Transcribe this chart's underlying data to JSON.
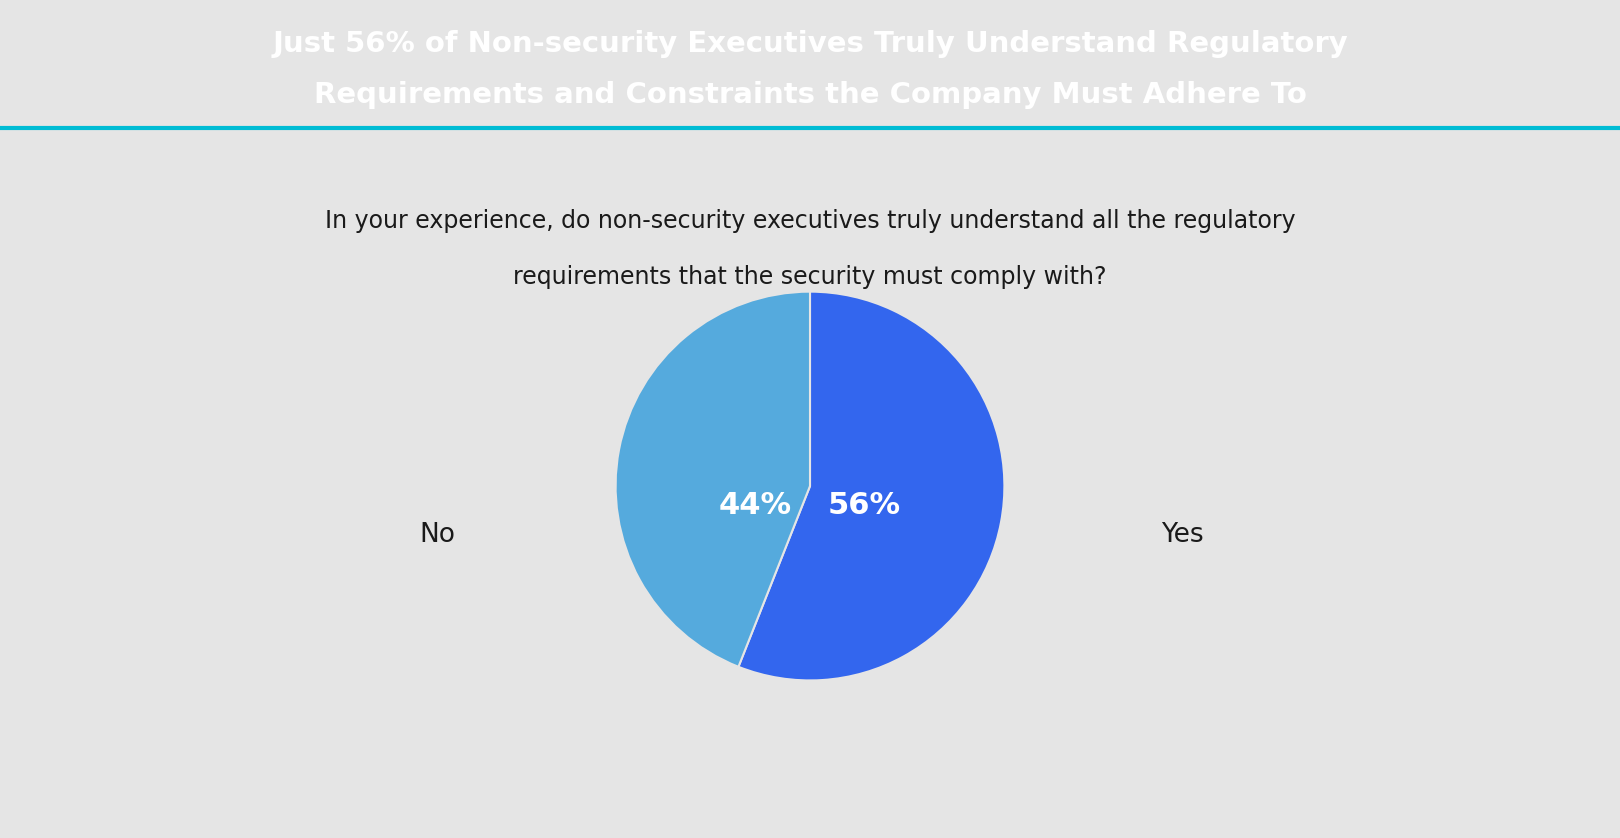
{
  "title_line1": "Just 56% of Non-security Executives Truly Understand Regulatory",
  "title_line2": "Requirements and Constraints the Company Must Adhere To",
  "question_line1": "In your experience, do non-security executives truly understand all the regulatory",
  "question_line2": "requirements that the security must comply with?",
  "slices": [
    56,
    44
  ],
  "labels": [
    "Yes",
    "No"
  ],
  "pct_labels": [
    "56%",
    "44%"
  ],
  "colors": [
    "#3366ee",
    "#55aadd"
  ],
  "header_bg": "#0d1f3c",
  "body_bg": "#e5e5e5",
  "header_text_color": "#ffffff",
  "body_text_color": "#1a1a1a",
  "accent_line_color": "#00bcd4",
  "title_fontsize": 21,
  "question_fontsize": 17,
  "label_fontsize": 19,
  "pct_fontsize": 22
}
